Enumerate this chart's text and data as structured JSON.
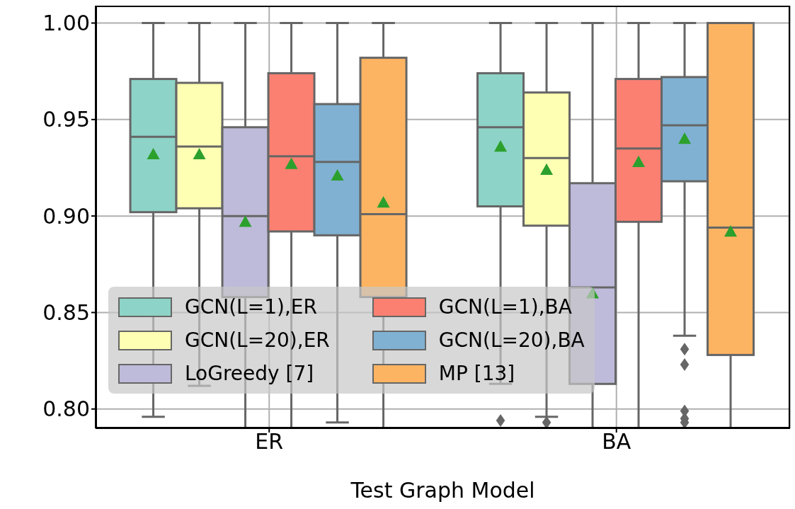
{
  "chart_data": {
    "type": "box",
    "xlabel": "Test Graph Model",
    "categories": [
      "ER",
      "BA"
    ],
    "ylim": [
      0.79,
      1.009
    ],
    "yticks": [
      {
        "value": 0.8,
        "label": "0.80"
      },
      {
        "value": 0.85,
        "label": "0.85"
      },
      {
        "value": 0.9,
        "label": "0.90"
      },
      {
        "value": 0.95,
        "label": "0.95"
      },
      {
        "value": 1.0,
        "label": "1.00"
      }
    ],
    "grid": true,
    "legend": "bottom left",
    "marker": "triangle",
    "series": [
      {
        "name": "GCN(L=1),ER",
        "color": "#8dd3c7",
        "boxes": [
          {
            "low": 0.796,
            "q1": 0.902,
            "median": 0.941,
            "q3": 0.971,
            "high": 1.0,
            "mean": 0.932
          },
          {
            "low": 0.813,
            "q1": 0.905,
            "median": 0.946,
            "q3": 0.974,
            "high": 1.0,
            "mean": 0.936,
            "outliers": [
              0.794
            ]
          }
        ]
      },
      {
        "name": "GCN(L=20),ER",
        "color": "#ffffb3",
        "boxes": [
          {
            "low": 0.812,
            "q1": 0.904,
            "median": 0.936,
            "q3": 0.969,
            "high": 1.0,
            "mean": 0.932
          },
          {
            "low": 0.796,
            "q1": 0.895,
            "median": 0.93,
            "q3": 0.964,
            "high": 1.0,
            "mean": 0.924,
            "outliers": [
              0.793
            ]
          }
        ]
      },
      {
        "name": "LoGreedy [7]",
        "color": "#bebada",
        "boxes": [
          {
            "low": 0.79,
            "q1": 0.858,
            "median": 0.9,
            "q3": 0.946,
            "high": 1.0,
            "mean": 0.897
          },
          {
            "low": 0.79,
            "q1": 0.813,
            "median": 0.863,
            "q3": 0.917,
            "high": 1.0,
            "mean": 0.86
          }
        ]
      },
      {
        "name": "GCN(L=1),BA",
        "color": "#fb8072",
        "boxes": [
          {
            "low": 0.79,
            "q1": 0.892,
            "median": 0.931,
            "q3": 0.974,
            "high": 1.0,
            "mean": 0.927
          },
          {
            "low": 0.79,
            "q1": 0.897,
            "median": 0.935,
            "q3": 0.971,
            "high": 1.0,
            "mean": 0.928
          }
        ]
      },
      {
        "name": "GCN(L=20),BA",
        "color": "#80b1d3",
        "boxes": [
          {
            "low": 0.793,
            "q1": 0.89,
            "median": 0.928,
            "q3": 0.958,
            "high": 1.0,
            "mean": 0.921
          },
          {
            "low": 0.838,
            "q1": 0.918,
            "median": 0.947,
            "q3": 0.972,
            "high": 1.0,
            "mean": 0.94,
            "outliers": [
              0.831,
              0.823,
              0.799,
              0.795,
              0.793
            ]
          }
        ]
      },
      {
        "name": "MP [13]",
        "color": "#fdb462",
        "boxes": [
          {
            "low": 0.79,
            "q1": 0.858,
            "median": 0.901,
            "q3": 0.982,
            "high": 1.0,
            "mean": 0.907
          },
          {
            "low": 0.79,
            "q1": 0.828,
            "median": 0.894,
            "q3": 1.0,
            "high": 1.0,
            "mean": 0.892
          }
        ]
      }
    ]
  }
}
